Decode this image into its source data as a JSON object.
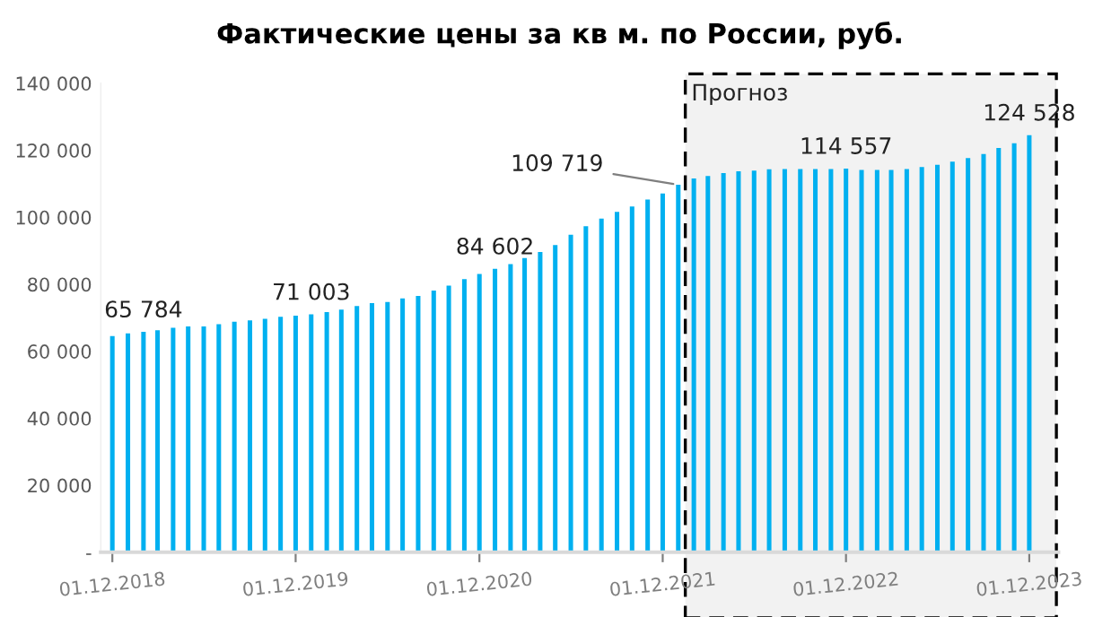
{
  "chart_data": {
    "type": "bar",
    "title": "Фактические цены за кв м. по России, руб.",
    "x": [
      "2018-12-01",
      "2019-01-01",
      "2019-02-01",
      "2019-03-01",
      "2019-04-01",
      "2019-05-01",
      "2019-06-01",
      "2019-07-01",
      "2019-08-01",
      "2019-09-01",
      "2019-10-01",
      "2019-11-01",
      "2019-12-01",
      "2020-01-01",
      "2020-02-01",
      "2020-03-01",
      "2020-04-01",
      "2020-05-01",
      "2020-06-01",
      "2020-07-01",
      "2020-08-01",
      "2020-09-01",
      "2020-10-01",
      "2020-11-01",
      "2020-12-01",
      "2021-01-01",
      "2021-02-01",
      "2021-03-01",
      "2021-04-01",
      "2021-05-01",
      "2021-06-01",
      "2021-07-01",
      "2021-08-01",
      "2021-09-01",
      "2021-10-01",
      "2021-11-01",
      "2021-12-01",
      "2022-01-01",
      "2022-02-01",
      "2022-03-01",
      "2022-04-01",
      "2022-05-01",
      "2022-06-01",
      "2022-07-01",
      "2022-08-01",
      "2022-09-01",
      "2022-10-01",
      "2022-11-01",
      "2022-12-01",
      "2023-01-01",
      "2023-02-01",
      "2023-03-01",
      "2023-04-01",
      "2023-05-01",
      "2023-06-01",
      "2023-07-01",
      "2023-08-01",
      "2023-09-01",
      "2023-10-01",
      "2023-11-01",
      "2023-12-01"
    ],
    "values": [
      64500,
      65300,
      65784,
      66300,
      67000,
      67400,
      67400,
      68100,
      68800,
      69200,
      69700,
      70300,
      70600,
      71003,
      71700,
      72400,
      73500,
      74400,
      74700,
      75800,
      76500,
      78100,
      79600,
      81500,
      83100,
      84602,
      86000,
      87800,
      89600,
      91700,
      94800,
      97300,
      99600,
      101600,
      103200,
      105300,
      107100,
      109719,
      111600,
      112300,
      113200,
      113700,
      113900,
      114300,
      114400,
      114400,
      114400,
      114400,
      114557,
      114100,
      114100,
      114100,
      114400,
      115000,
      115700,
      116600,
      117700,
      118900,
      120700,
      122100,
      124528
    ],
    "value_labels": [
      null,
      null,
      "65 784",
      null,
      null,
      null,
      null,
      null,
      null,
      null,
      null,
      null,
      null,
      "71 003",
      null,
      null,
      null,
      null,
      null,
      null,
      null,
      null,
      null,
      null,
      null,
      "84 602",
      null,
      null,
      null,
      null,
      null,
      null,
      null,
      null,
      null,
      null,
      null,
      "109 719",
      null,
      null,
      null,
      null,
      null,
      null,
      null,
      null,
      null,
      null,
      "114 557",
      null,
      null,
      null,
      null,
      null,
      null,
      null,
      null,
      null,
      null,
      null,
      "124 528"
    ],
    "color": "#00b0f0",
    "xlim": [
      "2018-11-08",
      "2024-01-28"
    ],
    "xticks": [
      {
        "value": "2018-12-01",
        "label": "01.12.2018"
      },
      {
        "value": "2019-12-01",
        "label": "01.12.2019"
      },
      {
        "value": "2020-12-01",
        "label": "01.12.2020"
      },
      {
        "value": "2021-12-01",
        "label": "01.12.2021"
      },
      {
        "value": "2022-12-01",
        "label": "01.12.2022"
      },
      {
        "value": "2023-12-01",
        "label": "01.12.2023"
      }
    ],
    "ylim": [
      0,
      140000
    ],
    "yticks": [
      {
        "value": 0,
        "label": "-"
      },
      {
        "value": 20000,
        "label": "20 000"
      },
      {
        "value": 40000,
        "label": "40 000"
      },
      {
        "value": 60000,
        "label": "60 000"
      },
      {
        "value": 80000,
        "label": "80 000"
      },
      {
        "value": 100000,
        "label": "100 000"
      },
      {
        "value": 120000,
        "label": "120 000"
      },
      {
        "value": 140000,
        "label": "140 000"
      }
    ],
    "bands": [
      {
        "axis": "x",
        "from": "2022-01-15",
        "to": "2024-01-24",
        "label": "Прогноз",
        "color": "#f2f2f2"
      }
    ],
    "grid": false,
    "legend": false
  }
}
